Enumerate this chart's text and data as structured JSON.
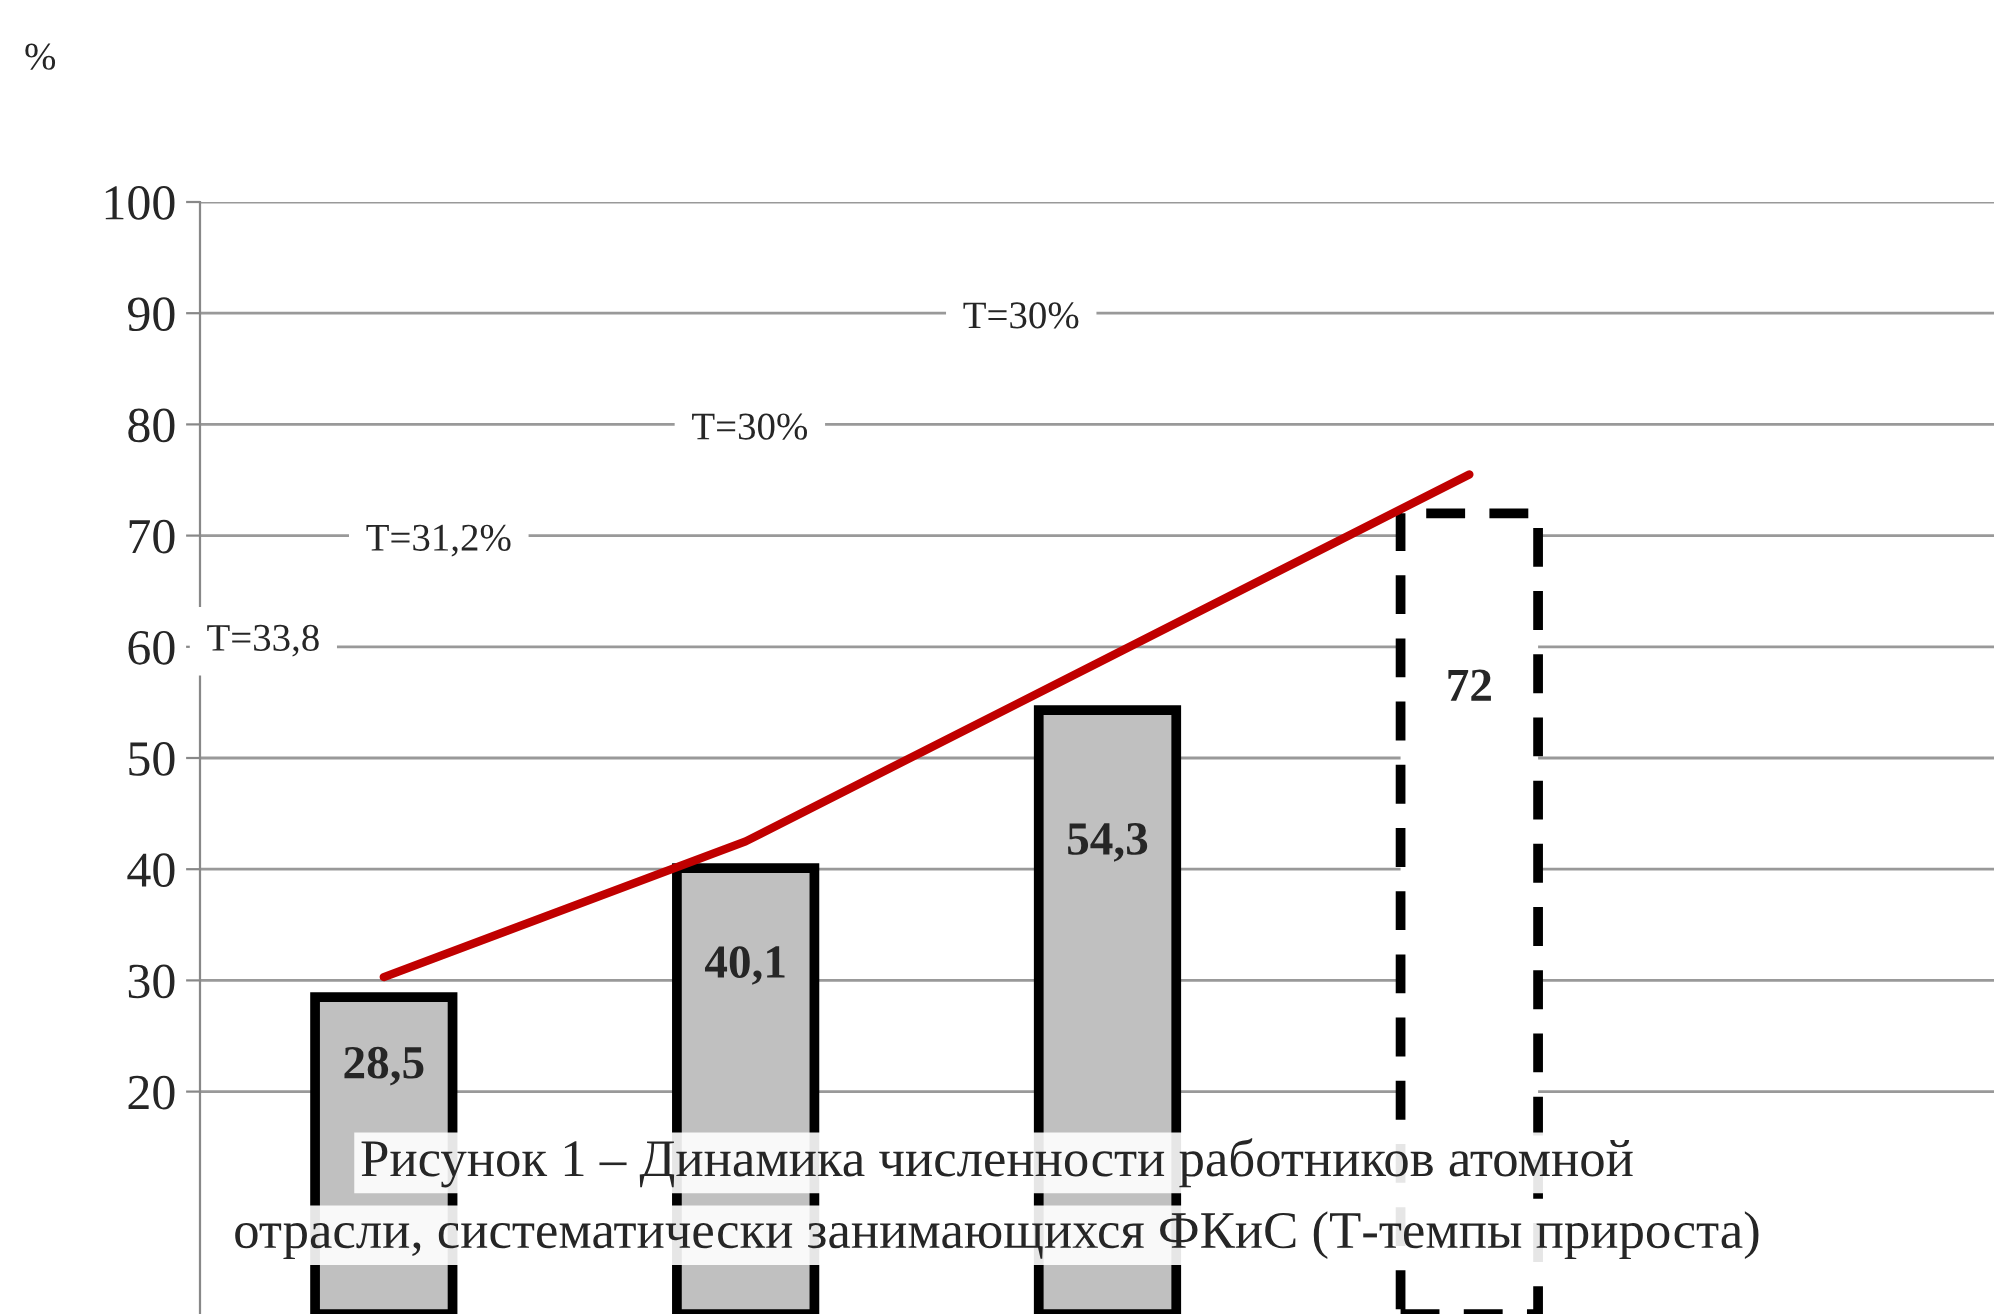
{
  "chart_data": {
    "type": "bar",
    "ylabel": "%",
    "categories": [
      null,
      null,
      null,
      null
    ],
    "series": [
      {
        "color": "#c0c0c0",
        "line_style": "solid",
        "values": [
          28.5,
          40.1,
          54.3,
          null
        ],
        "value_labels": [
          "28,5",
          "40,1",
          "54,3",
          null
        ]
      },
      {
        "color": "#ffffff",
        "line_style": "dashed",
        "values": [
          null,
          null,
          null,
          72
        ],
        "value_labels": [
          null,
          null,
          null,
          "72"
        ]
      },
      {
        "type": "line",
        "color": "#c00000",
        "line_style": "solid",
        "values": [
          30.3,
          42.5,
          59,
          75.5
        ]
      }
    ],
    "ylim": [
      0,
      100
    ],
    "yticks": [
      20,
      30,
      40,
      50,
      60,
      70,
      80,
      90,
      100
    ],
    "grid": "y",
    "legend": false,
    "annotations": [
      "T=33,8",
      "T=31,2%",
      "T=30%",
      "T=30%",
      "Рисунок 1 – Динамика численности работников атомной",
      "отрасли, систематически занимающихся ФКиС (Т-темпы прироста)"
    ]
  }
}
